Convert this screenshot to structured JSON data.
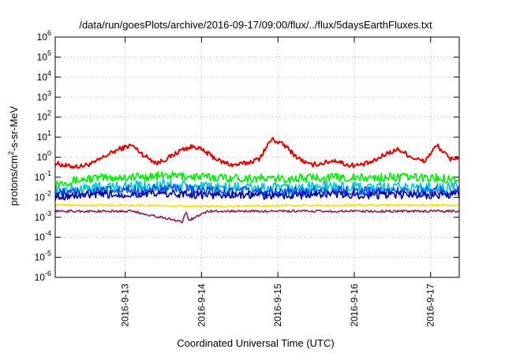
{
  "chart_data": {
    "type": "line",
    "title": "/data/run/goesPlots/archive/2016-09-17/09:00/flux/../flux/5daysEarthFluxes.txt",
    "xlabel": "Coordinated Universal Time (UTC)",
    "ylabel": {
      "base": "protons/cm",
      "sup": "2",
      "rest": "-s-sr-MeV"
    },
    "y_scale": "log",
    "ylim": [
      1e-06,
      1000000.0
    ],
    "xlim": [
      "2016-09-12 02:00",
      "2016-09-17 09:00"
    ],
    "x_ticks": [
      "2016-9-13",
      "2016-9-14",
      "2016-9-15",
      "2016-9-16",
      "2016-9-17"
    ],
    "y_ticks": [
      {
        "base": "10",
        "exp": "-6"
      },
      {
        "base": "10",
        "exp": "-5"
      },
      {
        "base": "10",
        "exp": "-4"
      },
      {
        "base": "10",
        "exp": "-3"
      },
      {
        "base": "10",
        "exp": "-2"
      },
      {
        "base": "10",
        "exp": "-1"
      },
      {
        "base": "10",
        "exp": "0"
      },
      {
        "base": "10",
        "exp": "1"
      },
      {
        "base": "10",
        "exp": "2"
      },
      {
        "base": "10",
        "exp": "3"
      },
      {
        "base": "10",
        "exp": "4"
      },
      {
        "base": "10",
        "exp": "5"
      },
      {
        "base": "10",
        "exp": "6"
      }
    ],
    "grid": true,
    "series": [
      {
        "color": "#e00000",
        "x": [
          "2016-09-12 02:00",
          "2016-09-12 06:00",
          "2016-09-12 10:00",
          "2016-09-12 14:00",
          "2016-09-12 18:00",
          "2016-09-12 22:00",
          "2016-09-13 02:00",
          "2016-09-13 06:00",
          "2016-09-13 10:00",
          "2016-09-13 14:00",
          "2016-09-13 18:00",
          "2016-09-13 22:00",
          "2016-09-14 02:00",
          "2016-09-14 06:00",
          "2016-09-14 10:00",
          "2016-09-14 14:00",
          "2016-09-14 18:00",
          "2016-09-14 22:00",
          "2016-09-15 02:00",
          "2016-09-15 06:00",
          "2016-09-15 10:00",
          "2016-09-15 14:00",
          "2016-09-15 18:00",
          "2016-09-15 22:00",
          "2016-09-16 02:00",
          "2016-09-16 06:00",
          "2016-09-16 10:00",
          "2016-09-16 14:00",
          "2016-09-16 18:00",
          "2016-09-16 22:00",
          "2016-09-17 02:00",
          "2016-09-17 06:00",
          "2016-09-17 09:00"
        ],
        "values": [
          0.5,
          0.35,
          0.35,
          0.5,
          1.2,
          2.5,
          4.0,
          1.2,
          0.5,
          1.0,
          2.5,
          3.5,
          1.5,
          0.6,
          0.4,
          0.5,
          0.8,
          8.0,
          4.0,
          1.0,
          0.4,
          0.5,
          0.7,
          0.4,
          0.4,
          0.6,
          1.5,
          2.5,
          1.0,
          0.6,
          4.0,
          0.8,
          1.0
        ]
      },
      {
        "color": "#00ee00",
        "x": [
          "2016-09-12 02:00",
          "2016-09-12 14:00",
          "2016-09-13 02:00",
          "2016-09-13 14:00",
          "2016-09-14 02:00",
          "2016-09-14 14:00",
          "2016-09-15 02:00",
          "2016-09-15 14:00",
          "2016-09-16 02:00",
          "2016-09-16 14:00",
          "2016-09-17 02:00",
          "2016-09-17 09:00"
        ],
        "values": [
          0.05,
          0.09,
          0.1,
          0.12,
          0.1,
          0.09,
          0.08,
          0.1,
          0.09,
          0.1,
          0.09,
          0.08
        ]
      },
      {
        "color": "#00c8c8",
        "x": [
          "2016-09-12 02:00",
          "2016-09-12 14:00",
          "2016-09-13 02:00",
          "2016-09-13 14:00",
          "2016-09-14 02:00",
          "2016-09-14 14:00",
          "2016-09-15 02:00",
          "2016-09-15 14:00",
          "2016-09-16 02:00",
          "2016-09-16 14:00",
          "2016-09-17 02:00",
          "2016-09-17 09:00"
        ],
        "values": [
          0.02,
          0.03,
          0.035,
          0.04,
          0.03,
          0.03,
          0.025,
          0.035,
          0.03,
          0.03,
          0.03,
          0.03
        ]
      },
      {
        "color": "#0050ff",
        "x": [
          "2016-09-12 02:00",
          "2016-09-12 14:00",
          "2016-09-13 02:00",
          "2016-09-13 14:00",
          "2016-09-14 02:00",
          "2016-09-14 14:00",
          "2016-09-15 02:00",
          "2016-09-15 14:00",
          "2016-09-16 02:00",
          "2016-09-16 14:00",
          "2016-09-17 02:00",
          "2016-09-17 09:00"
        ],
        "values": [
          0.015,
          0.02,
          0.022,
          0.025,
          0.02,
          0.02,
          0.018,
          0.022,
          0.02,
          0.02,
          0.02,
          0.02
        ]
      },
      {
        "color": "#0000a0",
        "x": [
          "2016-09-12 02:00",
          "2016-09-12 14:00",
          "2016-09-13 02:00",
          "2016-09-13 14:00",
          "2016-09-14 02:00",
          "2016-09-14 14:00",
          "2016-09-15 02:00",
          "2016-09-15 14:00",
          "2016-09-16 02:00",
          "2016-09-16 14:00",
          "2016-09-17 02:00",
          "2016-09-17 09:00"
        ],
        "values": [
          0.011,
          0.013,
          0.014,
          0.015,
          0.013,
          0.013,
          0.012,
          0.014,
          0.013,
          0.013,
          0.013,
          0.013
        ]
      },
      {
        "color": "#f0e000",
        "x": [
          "2016-09-12 02:00",
          "2016-09-13 02:00",
          "2016-09-14 02:00",
          "2016-09-15 02:00",
          "2016-09-16 02:00",
          "2016-09-17 02:00",
          "2016-09-17 09:00"
        ],
        "values": [
          0.004,
          0.004,
          0.0035,
          0.0038,
          0.004,
          0.004,
          0.004
        ]
      },
      {
        "color": "#902060",
        "x": [
          "2016-09-12 02:00",
          "2016-09-13 02:00",
          "2016-09-13 18:00",
          "2016-09-13 19:00",
          "2016-09-13 20:00",
          "2016-09-14 02:00",
          "2016-09-15 02:00",
          "2016-09-16 02:00",
          "2016-09-17 02:00",
          "2016-09-17 09:00"
        ],
        "values": [
          0.002,
          0.002,
          0.0006,
          0.002,
          0.0007,
          0.002,
          0.002,
          0.002,
          0.002,
          0.002
        ]
      }
    ]
  }
}
